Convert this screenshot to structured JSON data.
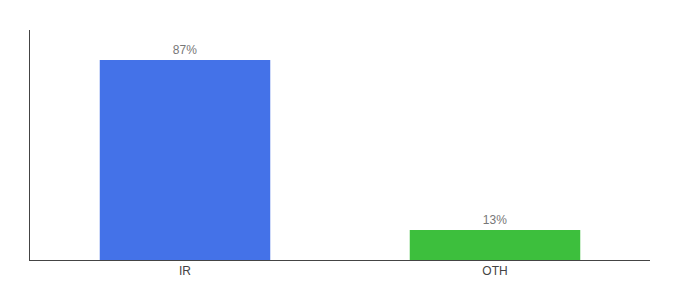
{
  "chart_data": {
    "type": "bar",
    "categories": [
      "IR",
      "OTH"
    ],
    "values": [
      87,
      13
    ],
    "value_labels": [
      "87%",
      "13%"
    ],
    "colors": [
      "#4472e8",
      "#3dbf3d"
    ],
    "ylim": [
      0,
      100
    ],
    "grid": false,
    "data_labels": true,
    "tick_labels": "x"
  }
}
